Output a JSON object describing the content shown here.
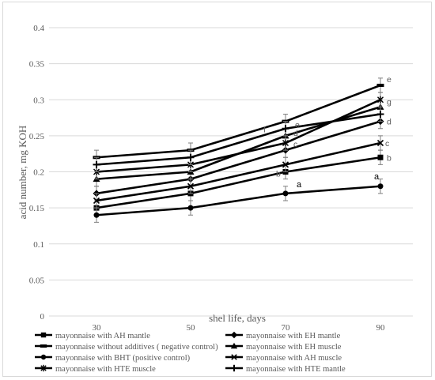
{
  "chart_data": {
    "type": "line",
    "title": "",
    "xlabel": "shel life, days",
    "ylabel": "acid number, mg KOH",
    "x": [
      30,
      50,
      70,
      90
    ],
    "categories": [
      "30",
      "50",
      "70",
      "90"
    ],
    "ylim": [
      0,
      0.4
    ],
    "yticks": [
      "0",
      "0.05",
      "0.1",
      "0.15",
      "0.2",
      "0.25",
      "0.3",
      "0.35",
      "0.4"
    ],
    "grid": "horizontal",
    "legend_position": "bottom",
    "series": [
      {
        "name": "mayonnaise with AH mantle",
        "marker": "square",
        "values": [
          0.15,
          0.17,
          0.2,
          0.22
        ]
      },
      {
        "name": "mayonnaise with EH mantle",
        "marker": "diamond",
        "values": [
          0.17,
          0.19,
          0.23,
          0.27
        ]
      },
      {
        "name": "mayonnaise without additives ( negative control)",
        "marker": "dash",
        "values": [
          0.22,
          0.23,
          0.27,
          0.32
        ]
      },
      {
        "name": "mayonnaise with EH muscle",
        "marker": "triangle",
        "values": [
          0.19,
          0.2,
          0.25,
          0.29
        ]
      },
      {
        "name": "mayonnaise with BHT (positive control)",
        "marker": "circle",
        "values": [
          0.14,
          0.15,
          0.17,
          0.18
        ]
      },
      {
        "name": "mayonnaise with AH muscle",
        "marker": "x",
        "values": [
          0.16,
          0.18,
          0.21,
          0.24
        ]
      },
      {
        "name": "mayonnaise with HTE muscle",
        "marker": "star",
        "values": [
          0.2,
          0.21,
          0.24,
          0.3
        ]
      },
      {
        "name": "mayonnaise with HTE mantle",
        "marker": "plus",
        "values": [
          0.21,
          0.22,
          0.26,
          0.28
        ]
      }
    ],
    "error_bar": 0.01,
    "annotations": [
      {
        "text": "a",
        "x": 70,
        "y": 0.17,
        "bold": true
      },
      {
        "text": "a",
        "x": 90,
        "y": 0.18,
        "bold": true
      },
      {
        "text": "b",
        "x": 70,
        "y": 0.2
      },
      {
        "text": "b",
        "x": 90,
        "y": 0.22
      },
      {
        "text": "c",
        "x": 70,
        "y": 0.23
      },
      {
        "text": "c",
        "x": 90,
        "y": 0.24
      },
      {
        "text": "d",
        "x": 70,
        "y": 0.25
      },
      {
        "text": "d",
        "x": 90,
        "y": 0.27
      },
      {
        "text": "e",
        "x": 70,
        "y": 0.27
      },
      {
        "text": "e",
        "x": 90,
        "y": 0.32
      },
      {
        "text": "f",
        "x": 70,
        "y": 0.27
      },
      {
        "text": "g",
        "x": 90,
        "y": 0.3
      }
    ],
    "colors": {
      "series": "#000000",
      "grid": "#d9d9d9",
      "text": "#595959"
    }
  }
}
